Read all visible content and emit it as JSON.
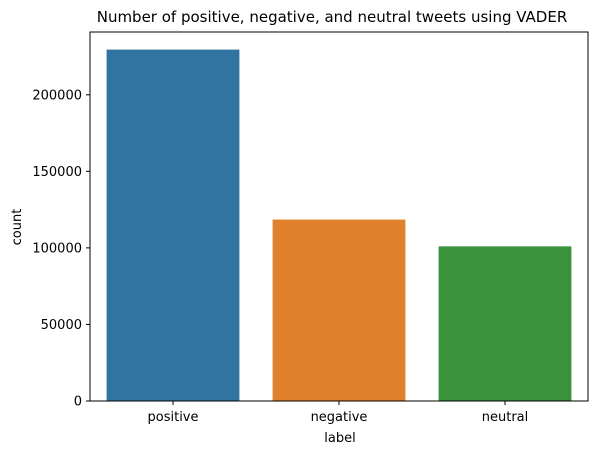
{
  "chart_data": {
    "type": "bar",
    "title": "Number of positive, negative, and neutral tweets using VADER",
    "xlabel": "label",
    "ylabel": "count",
    "categories": [
      "positive",
      "negative",
      "neutral"
    ],
    "values": [
      229500,
      118500,
      101000
    ],
    "colors": [
      "#3274a1",
      "#e1812c",
      "#3a923a"
    ],
    "ylim": [
      0,
      241000
    ],
    "yticks": [
      0,
      50000,
      100000,
      150000,
      200000
    ],
    "ytick_labels": [
      "0",
      "50000",
      "100000",
      "150000",
      "200000"
    ],
    "grid": false,
    "legend": "none"
  }
}
